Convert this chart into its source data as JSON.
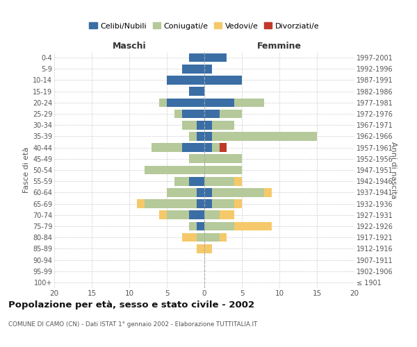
{
  "age_groups": [
    "100+",
    "95-99",
    "90-94",
    "85-89",
    "80-84",
    "75-79",
    "70-74",
    "65-69",
    "60-64",
    "55-59",
    "50-54",
    "45-49",
    "40-44",
    "35-39",
    "30-34",
    "25-29",
    "20-24",
    "15-19",
    "10-14",
    "5-9",
    "0-4"
  ],
  "birth_years": [
    "≤ 1901",
    "1902-1906",
    "1907-1911",
    "1912-1916",
    "1917-1921",
    "1922-1926",
    "1927-1931",
    "1932-1936",
    "1937-1941",
    "1942-1946",
    "1947-1951",
    "1952-1956",
    "1957-1961",
    "1962-1966",
    "1967-1971",
    "1972-1976",
    "1977-1981",
    "1982-1986",
    "1987-1991",
    "1992-1996",
    "1997-2001"
  ],
  "males": {
    "celibi": [
      0,
      0,
      0,
      0,
      0,
      1,
      2,
      1,
      1,
      2,
      0,
      0,
      3,
      1,
      1,
      3,
      5,
      2,
      5,
      3,
      2
    ],
    "coniugati": [
      0,
      0,
      0,
      0,
      1,
      1,
      3,
      7,
      4,
      2,
      8,
      2,
      4,
      1,
      2,
      1,
      1,
      0,
      0,
      0,
      0
    ],
    "vedovi": [
      0,
      0,
      0,
      1,
      2,
      0,
      1,
      1,
      0,
      0,
      0,
      0,
      0,
      0,
      0,
      0,
      0,
      0,
      0,
      0,
      0
    ],
    "divorziati": [
      0,
      0,
      0,
      0,
      0,
      0,
      0,
      0,
      0,
      0,
      0,
      0,
      0,
      0,
      0,
      0,
      0,
      0,
      0,
      0,
      0
    ]
  },
  "females": {
    "nubili": [
      0,
      0,
      0,
      0,
      0,
      0,
      0,
      1,
      1,
      0,
      0,
      0,
      1,
      1,
      1,
      2,
      4,
      0,
      5,
      1,
      3
    ],
    "coniugate": [
      0,
      0,
      0,
      0,
      2,
      4,
      2,
      3,
      7,
      4,
      5,
      5,
      1,
      14,
      3,
      3,
      4,
      0,
      0,
      0,
      0
    ],
    "vedove": [
      0,
      0,
      0,
      1,
      1,
      5,
      2,
      1,
      1,
      1,
      0,
      0,
      0,
      0,
      0,
      0,
      0,
      0,
      0,
      0,
      0
    ],
    "divorziate": [
      0,
      0,
      0,
      0,
      0,
      0,
      0,
      0,
      0,
      0,
      0,
      0,
      1,
      0,
      0,
      0,
      0,
      0,
      0,
      0,
      0
    ]
  },
  "colors": {
    "celibi_nubili": "#3a6ea5",
    "coniugati": "#b5c99a",
    "vedovi": "#f5c96a",
    "divorziati": "#c0392b"
  },
  "xlim": 20,
  "title": "Popolazione per età, sesso e stato civile - 2002",
  "subtitle": "COMUNE DI CAMO (CN) - Dati ISTAT 1° gennaio 2002 - Elaborazione TUTTITALIA.IT",
  "xlabel_left": "Maschi",
  "xlabel_right": "Femmine",
  "ylabel_left": "Fasce di età",
  "ylabel_right": "Anni di nascita",
  "legend_labels": [
    "Celibi/Nubili",
    "Coniugati/e",
    "Vedovi/e",
    "Divorziati/e"
  ],
  "bg_color": "#ffffff"
}
